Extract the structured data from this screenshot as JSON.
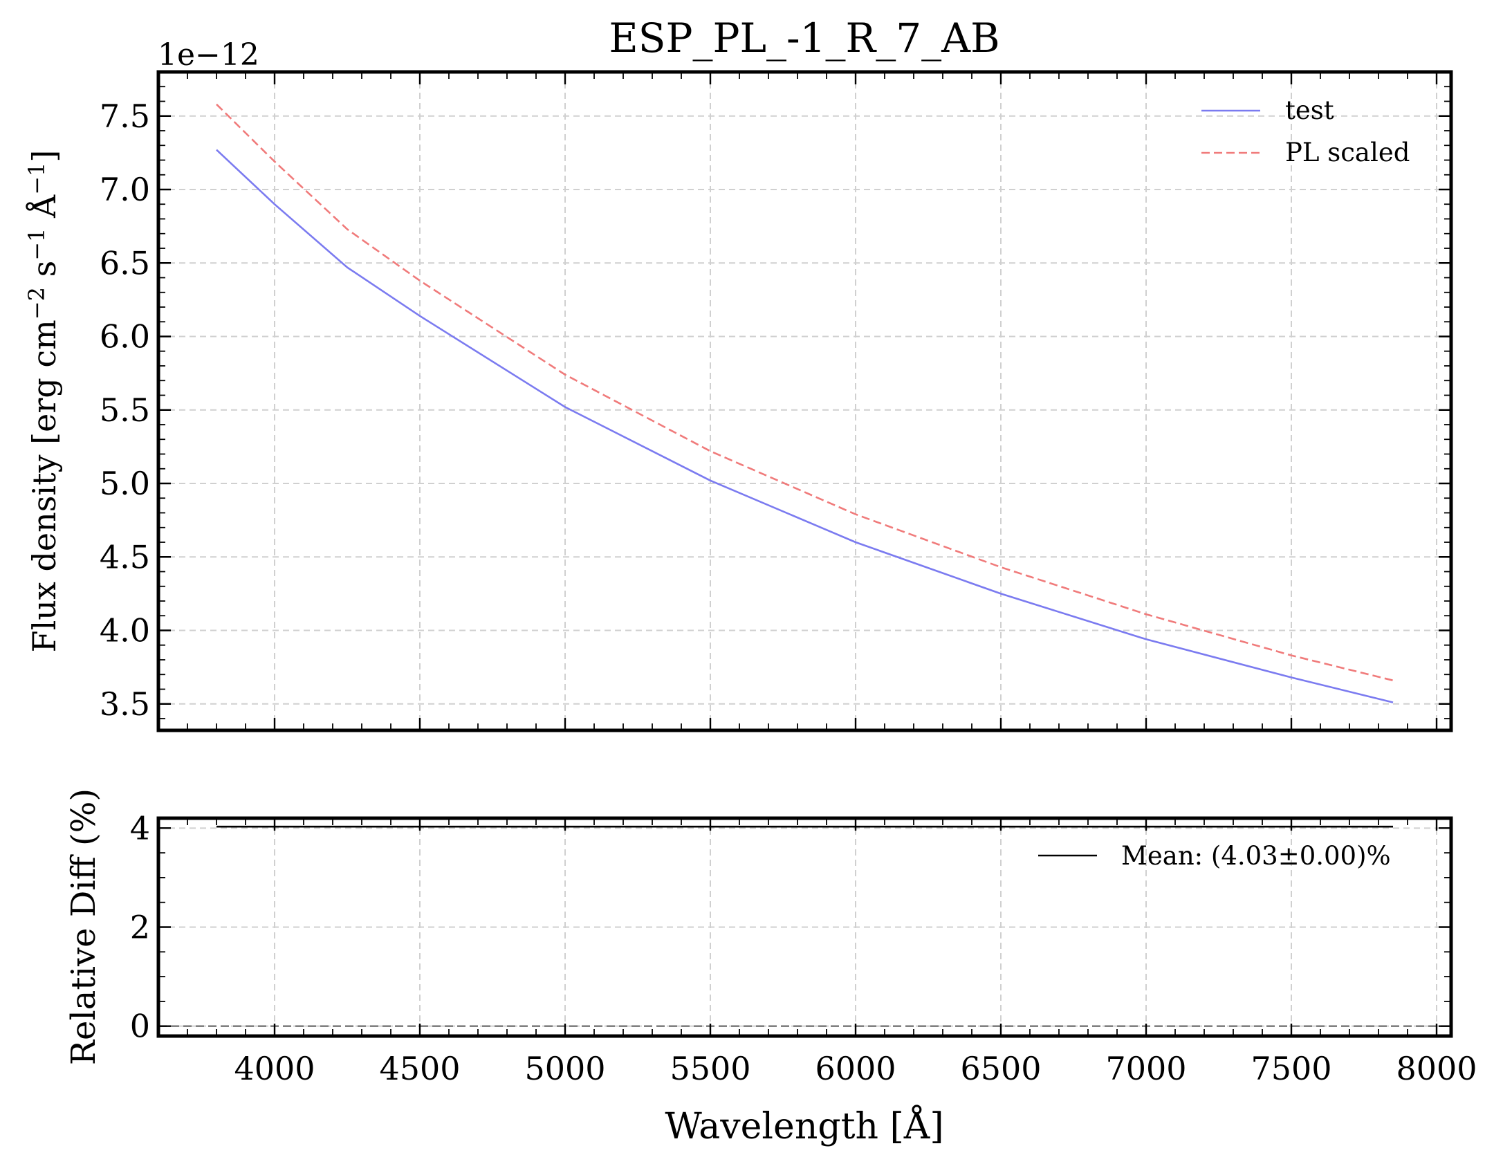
{
  "chart_data": [
    {
      "type": "line",
      "title": "ESP_PL_-1_R_7_AB",
      "ylabel": "Flux density [erg cm$^{-2}$ s$^{-1}$ Å$^{-1}$]",
      "ylabel_parts": {
        "prefix": "Flux density [erg cm",
        "exp1": "−2",
        "mid1": " s",
        "exp2": "−1",
        "mid2": " Å",
        "exp3": "−1",
        "suffix": "]"
      },
      "offset_text": "1e−12",
      "xlim": [
        3600,
        8050
      ],
      "ylim": [
        3.32,
        7.8
      ],
      "yticks": [
        3.5,
        4.0,
        4.5,
        5.0,
        5.5,
        6.0,
        6.5,
        7.0,
        7.5
      ],
      "ytick_labels": [
        "3.5",
        "4.0",
        "4.5",
        "5.0",
        "5.5",
        "6.0",
        "6.5",
        "7.0",
        "7.5"
      ],
      "xticks": [
        4000,
        4500,
        5000,
        5500,
        6000,
        6500,
        7000,
        7500,
        8000
      ],
      "grid": true,
      "legend_position": "top-right",
      "series": [
        {
          "name": "test",
          "color": "#7b7bf0",
          "style": "solid",
          "x": [
            3800,
            4000,
            4250,
            4500,
            5000,
            5500,
            6000,
            6500,
            7000,
            7500,
            7850
          ],
          "y": [
            7.27,
            6.9,
            6.47,
            6.14,
            5.52,
            5.02,
            4.6,
            4.25,
            3.94,
            3.68,
            3.51
          ]
        },
        {
          "name": "PL scaled",
          "color": "#f07b7b",
          "style": "dashed",
          "x": [
            3800,
            4000,
            4250,
            4500,
            5000,
            5500,
            6000,
            6500,
            7000,
            7500,
            7850
          ],
          "y": [
            7.58,
            7.19,
            6.73,
            6.38,
            5.74,
            5.22,
            4.79,
            4.43,
            4.11,
            3.83,
            3.66
          ]
        }
      ]
    },
    {
      "type": "line",
      "xlabel": "Wavelength [Å]",
      "ylabel": "Relative Diff (%)",
      "xlim": [
        3600,
        8050
      ],
      "ylim": [
        -0.2,
        4.2
      ],
      "yticks": [
        0,
        2,
        4
      ],
      "ytick_labels": [
        "0",
        "2",
        "4"
      ],
      "xticks": [
        4000,
        4500,
        5000,
        5500,
        6000,
        6500,
        7000,
        7500,
        8000
      ],
      "xtick_labels": [
        "4000",
        "4500",
        "5000",
        "5500",
        "6000",
        "6500",
        "7000",
        "7500",
        "8000"
      ],
      "grid": true,
      "legend_position": "top-right",
      "reference_line": {
        "y": 0,
        "color": "#808080",
        "style": "dashed"
      },
      "series": [
        {
          "name": "Mean: (4.03±0.00)%",
          "color": "#000000",
          "style": "solid",
          "x": [
            3800,
            7850
          ],
          "y": [
            4.03,
            4.03
          ]
        }
      ]
    }
  ]
}
